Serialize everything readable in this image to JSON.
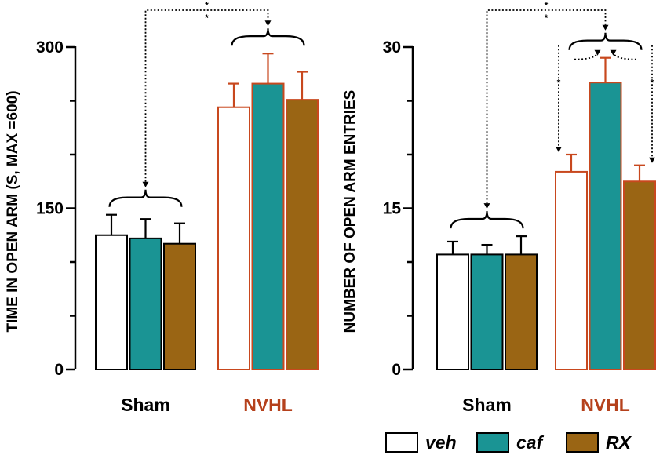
{
  "chart_data": [
    {
      "type": "bar",
      "ylabel": "TIME IN OPEN ARM (S, MAX =600)",
      "ylim": [
        0,
        300
      ],
      "yticks": [
        0,
        150,
        300
      ],
      "groups": [
        {
          "name": "Sham",
          "label_color": "#000000",
          "values": [
            125,
            122,
            117
          ],
          "errors": [
            19,
            18,
            19
          ]
        },
        {
          "name": "NVHL",
          "label_color": "#b5411c",
          "values": [
            244,
            266,
            251
          ],
          "errors": [
            22,
            28,
            26
          ]
        }
      ],
      "significance": [
        {
          "between": [
            "Sham",
            "NVHL"
          ],
          "label": "**"
        }
      ]
    },
    {
      "type": "bar",
      "ylabel": "NUMBER OF OPEN ARM ENTRIES",
      "ylim": [
        0,
        30
      ],
      "yticks": [
        0,
        15,
        30
      ],
      "groups": [
        {
          "name": "Sham",
          "label_color": "#000000",
          "values": [
            10.7,
            10.7,
            10.7
          ],
          "errors": [
            1.2,
            0.9,
            1.7
          ]
        },
        {
          "name": "NVHL",
          "label_color": "#b5411c",
          "values": [
            18.4,
            26.7,
            17.5
          ],
          "errors": [
            1.6,
            2.3,
            1.5
          ]
        }
      ],
      "significance": [
        {
          "between": [
            "Sham",
            "NVHL"
          ],
          "label": "**"
        },
        {
          "between": [
            "veh",
            "caf"
          ],
          "group": "NVHL",
          "label": "*"
        },
        {
          "between": [
            "RX",
            "caf"
          ],
          "group": "NVHL",
          "label": "*"
        }
      ]
    }
  ],
  "legend": [
    {
      "label": "veh",
      "color": "#ffffff"
    },
    {
      "label": "caf",
      "color": "#1a9494"
    },
    {
      "label": "RX",
      "color": "#9a6514"
    }
  ],
  "colors": {
    "sham_edge": "#000000",
    "nvhl_edge": "#c8481e",
    "error_sham": "#000000",
    "error_nvhl": "#c8481e"
  }
}
